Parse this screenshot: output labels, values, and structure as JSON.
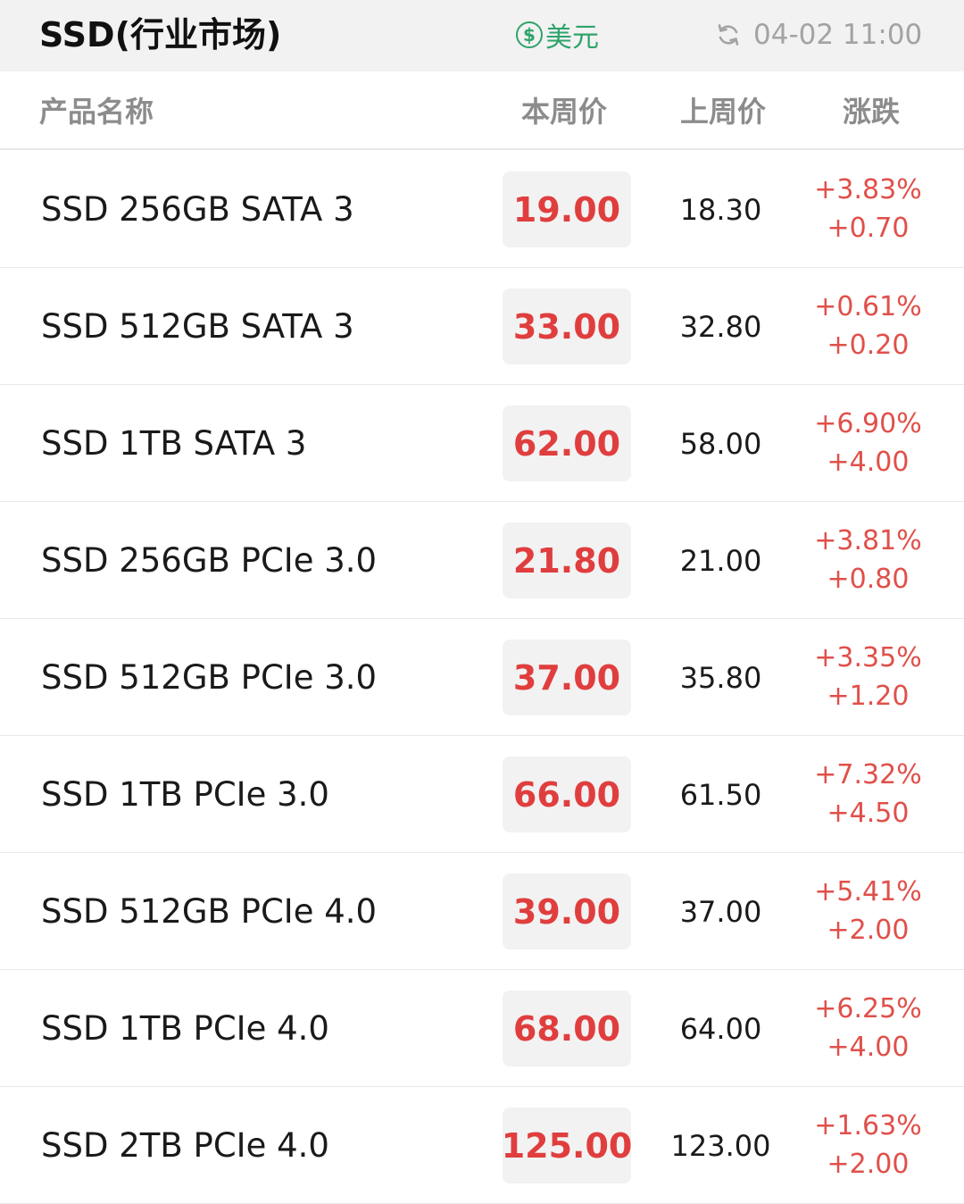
{
  "topbar": {
    "title": "SSD(行业市场)",
    "currency_symbol": "$",
    "currency_label": "美元",
    "refresh_icon": "refresh-icon",
    "timestamp": "04-02 11:00"
  },
  "header": {
    "name": "产品名称",
    "this_week": "本周价",
    "last_week": "上周价",
    "change": "涨跌"
  },
  "colors": {
    "up": "#e0504a",
    "price": "#e03e3e",
    "currency": "#2fa36b"
  },
  "rows": [
    {
      "name": "SSD 256GB SATA 3",
      "price": "19.00",
      "last": "18.30",
      "pct": "+3.83%",
      "diff": "+0.70"
    },
    {
      "name": "SSD 512GB SATA 3",
      "price": "33.00",
      "last": "32.80",
      "pct": "+0.61%",
      "diff": "+0.20"
    },
    {
      "name": "SSD 1TB SATA 3",
      "price": "62.00",
      "last": "58.00",
      "pct": "+6.90%",
      "diff": "+4.00"
    },
    {
      "name": "SSD 256GB PCIe 3.0",
      "price": "21.80",
      "last": "21.00",
      "pct": "+3.81%",
      "diff": "+0.80"
    },
    {
      "name": "SSD 512GB PCIe 3.0",
      "price": "37.00",
      "last": "35.80",
      "pct": "+3.35%",
      "diff": "+1.20"
    },
    {
      "name": "SSD 1TB PCIe 3.0",
      "price": "66.00",
      "last": "61.50",
      "pct": "+7.32%",
      "diff": "+4.50"
    },
    {
      "name": "SSD 512GB PCIe 4.0",
      "price": "39.00",
      "last": "37.00",
      "pct": "+5.41%",
      "diff": "+2.00"
    },
    {
      "name": "SSD 1TB PCIe 4.0",
      "price": "68.00",
      "last": "64.00",
      "pct": "+6.25%",
      "diff": "+4.00"
    },
    {
      "name": "SSD 2TB PCIe 4.0",
      "price": "125.00",
      "last": "123.00",
      "pct": "+1.63%",
      "diff": "+2.00"
    }
  ]
}
